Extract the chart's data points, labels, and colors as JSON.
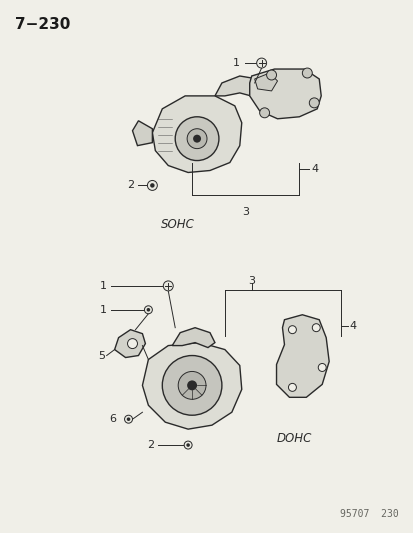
{
  "title": "7−230",
  "footer": "95707  230",
  "bg_color": "#f0efe8",
  "text_color": "#1a1a1a",
  "line_color": "#2a2a2a",
  "sohc_label": "SOHC",
  "dohc_label": "DOHC",
  "figsize": [
    4.14,
    5.33
  ],
  "dpi": 100
}
